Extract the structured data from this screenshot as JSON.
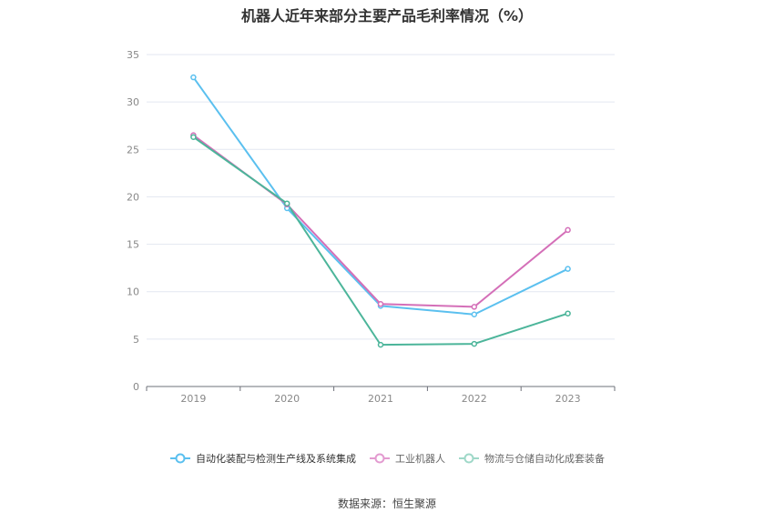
{
  "chart_data": {
    "type": "line",
    "title": "机器人近年来部分主要产品毛利率情况（%）",
    "categories": [
      "2019",
      "2020",
      "2021",
      "2022",
      "2023"
    ],
    "ylim": [
      0,
      35
    ],
    "yticks": [
      "0",
      "5",
      "10",
      "15",
      "20",
      "25",
      "30",
      "35"
    ],
    "grid": true,
    "legend_position": "bottom",
    "series": [
      {
        "name": "自动化装配与检测生产线及系统集成",
        "color": "#5bc0ef",
        "values": [
          32.6,
          18.8,
          8.5,
          7.6,
          12.4
        ]
      },
      {
        "name": "工业机器人",
        "color": "#d46fb8",
        "values": [
          26.5,
          19.2,
          8.7,
          8.4,
          16.5
        ]
      },
      {
        "name": "物流与仓储自动化成套装备",
        "color": "#4cb59a",
        "values": [
          26.3,
          19.3,
          4.4,
          4.5,
          7.7
        ]
      }
    ]
  },
  "source": "数据来源：恒生聚源"
}
